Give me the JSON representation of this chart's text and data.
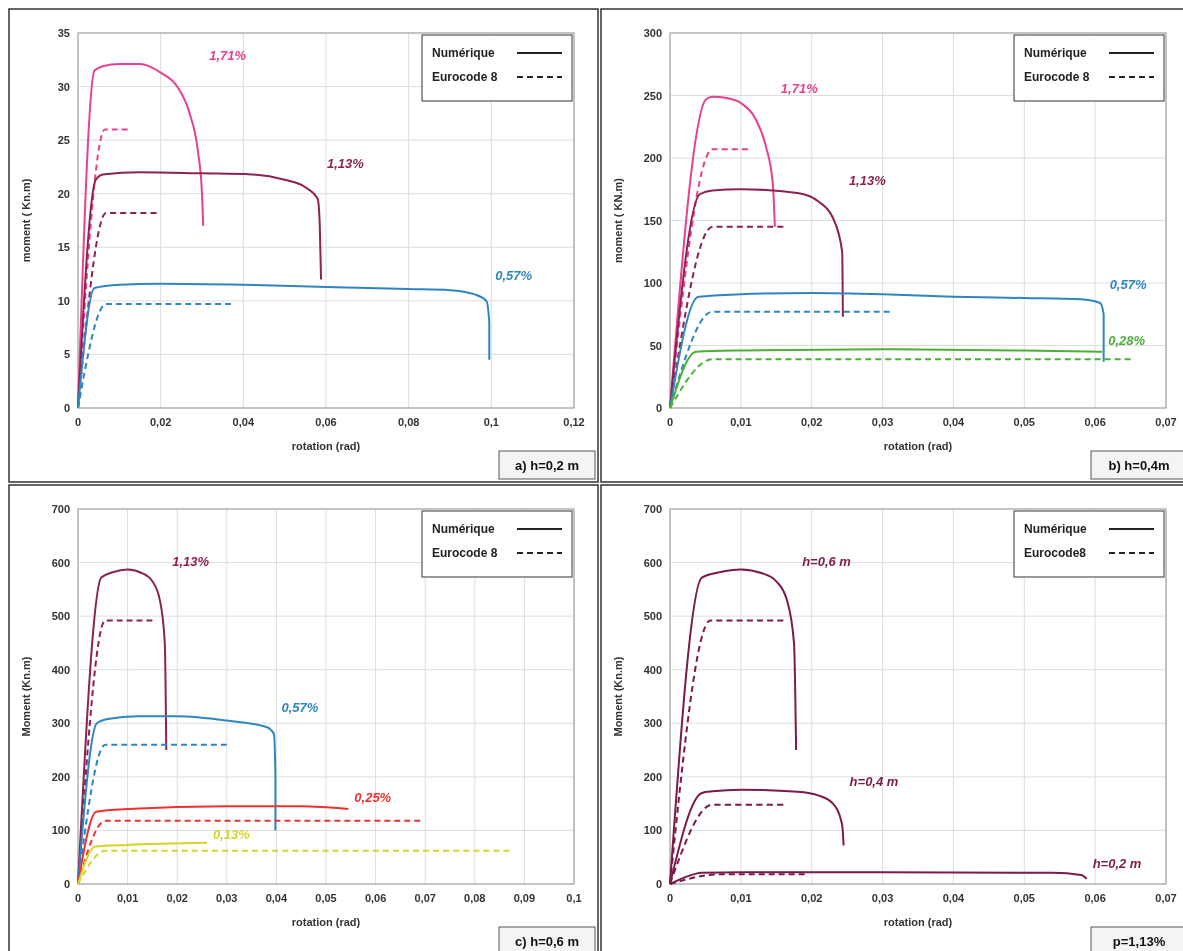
{
  "chart_data": [
    {
      "type": "line",
      "title": "a) h=0,2 m",
      "xlabel": "rotation (rad)",
      "ylabel": "moment ( Kn.m)",
      "grid": true,
      "xlim": [
        0,
        0.12
      ],
      "xticks": [
        {
          "value": 0,
          "label": "0"
        },
        {
          "value": 0.02,
          "label": "0,02"
        },
        {
          "value": 0.04,
          "label": "0,04"
        },
        {
          "value": 0.06,
          "label": "0,06"
        },
        {
          "value": 0.08,
          "label": "0,08"
        },
        {
          "value": 0.1,
          "label": "0,1"
        },
        {
          "value": 0.12,
          "label": "0,12"
        }
      ],
      "ylim": [
        0,
        35
      ],
      "yticks": [
        {
          "value": 0,
          "label": "0"
        },
        5,
        10,
        15,
        20,
        25,
        30,
        35
      ],
      "annotations": [
        "Numérique",
        "Eurocode 8"
      ],
      "series": [
        {
          "name": "1,71%",
          "color": "#e8408f",
          "line_style": "solid",
          "x": [
            0,
            0.004,
            0.006,
            0.01,
            0.015,
            0.02,
            0.024,
            0.027,
            0.029,
            0.03,
            0.0303
          ],
          "values": [
            0,
            31.5,
            31.9,
            32.1,
            32.1,
            31.3,
            30,
            27.5,
            24,
            20,
            17
          ]
        },
        {
          "color": "#e8408f",
          "line_style": "dashed",
          "x": [
            0,
            0.0065,
            0.012
          ],
          "values": [
            0,
            26,
            26
          ]
        },
        {
          "name": "1,13%",
          "color": "#8b2252",
          "line_style": "solid",
          "x": [
            0,
            0.0043,
            0.006,
            0.015,
            0.03,
            0.042,
            0.05,
            0.055,
            0.058,
            0.0585,
            0.0588
          ],
          "values": [
            0,
            21.3,
            21.8,
            22,
            21.9,
            21.8,
            21.3,
            20.6,
            19.5,
            17,
            12
          ]
        },
        {
          "color": "#8b2252",
          "line_style": "dashed",
          "x": [
            0,
            0.0068,
            0.019
          ],
          "values": [
            0,
            18.2,
            18.2
          ]
        },
        {
          "name": "0,57%",
          "color": "#2e86c1",
          "line_style": "solid",
          "x": [
            0,
            0.004,
            0.01,
            0.02,
            0.04,
            0.06,
            0.08,
            0.09,
            0.096,
            0.0988,
            0.0995,
            0.0995
          ],
          "values": [
            0,
            11.2,
            11.5,
            11.6,
            11.5,
            11.3,
            11.1,
            11,
            10.6,
            10,
            8,
            4.5
          ]
        },
        {
          "color": "#2e86c1",
          "line_style": "dashed",
          "x": [
            0,
            0.0068,
            0.037
          ],
          "values": [
            0,
            9.7,
            9.7
          ]
        }
      ]
    },
    {
      "type": "line",
      "title": "b) h=0,4m",
      "xlabel": "rotation (rad)",
      "ylabel": "moment ( KN.m)",
      "grid": true,
      "xlim": [
        0,
        0.07
      ],
      "xticks": [
        0,
        {
          "value": 0.01,
          "label": "0,01"
        },
        {
          "value": 0.02,
          "label": "0,02"
        },
        {
          "value": 0.03,
          "label": "0,03"
        },
        {
          "value": 0.04,
          "label": "0,04"
        },
        {
          "value": 0.05,
          "label": "0,05"
        },
        {
          "value": 0.06,
          "label": "0,06"
        },
        {
          "value": 0.07,
          "label": "0,07"
        }
      ],
      "ylim": [
        0,
        300
      ],
      "yticks": [
        {
          "value": 0,
          "label": "0"
        },
        50,
        100,
        150,
        200,
        250,
        300
      ],
      "annotations": [
        "Numérique",
        "Eurocode 8"
      ],
      "series": [
        {
          "name": "1,71%",
          "color": "#e8408f",
          "line_style": "solid",
          "x": [
            0,
            0.0051,
            0.006,
            0.008,
            0.01,
            0.012,
            0.0135,
            0.0145,
            0.0148
          ],
          "values": [
            0,
            247,
            249,
            248,
            244,
            232,
            210,
            180,
            145
          ]
        },
        {
          "color": "#e8408f",
          "line_style": "dashed",
          "x": [
            0,
            0.006,
            0.011
          ],
          "values": [
            0,
            207,
            207
          ]
        },
        {
          "name": "1,13%",
          "color": "#8b2252",
          "line_style": "solid",
          "x": [
            0,
            0.0042,
            0.006,
            0.01,
            0.018,
            0.021,
            0.023,
            0.0243,
            0.0244
          ],
          "values": [
            0,
            171,
            174,
            175,
            172,
            165,
            152,
            125,
            73
          ]
        },
        {
          "color": "#8b2252",
          "line_style": "dashed",
          "x": [
            0,
            0.006,
            0.016
          ],
          "values": [
            0,
            145,
            145
          ]
        },
        {
          "name": "0,57%",
          "color": "#2e86c1",
          "line_style": "solid",
          "x": [
            0,
            0.004,
            0.01,
            0.02,
            0.03,
            0.04,
            0.05,
            0.058,
            0.0607,
            0.0612,
            0.0612
          ],
          "values": [
            0,
            89,
            91,
            92,
            91,
            89,
            88,
            87,
            84,
            75,
            37
          ]
        },
        {
          "color": "#2e86c1",
          "line_style": "dashed",
          "x": [
            0,
            0.006,
            0.031
          ],
          "values": [
            0,
            77,
            77
          ]
        },
        {
          "name": "0,28%",
          "color": "#4caf3a",
          "line_style": "solid",
          "x": [
            0,
            0.0037,
            0.01,
            0.03,
            0.05,
            0.061
          ],
          "values": [
            0,
            45,
            46,
            47,
            46,
            45
          ]
        },
        {
          "color": "#4caf3a",
          "line_style": "dashed",
          "x": [
            0,
            0.006,
            0.065
          ],
          "values": [
            0,
            39,
            39
          ]
        }
      ]
    },
    {
      "type": "line",
      "title": "c) h=0,6 m",
      "xlabel": "rotation (rad)",
      "ylabel": "Moment (Kn.m)",
      "grid": true,
      "xlim": [
        0,
        0.1
      ],
      "xticks": [
        {
          "value": 0,
          "label": "0"
        },
        {
          "value": 0.01,
          "label": "0,01"
        },
        {
          "value": 0.02,
          "label": "0,02"
        },
        {
          "value": 0.03,
          "label": "0,03"
        },
        {
          "value": 0.04,
          "label": "0,04"
        },
        {
          "value": 0.05,
          "label": "0,05"
        },
        {
          "value": 0.06,
          "label": "0,06"
        },
        {
          "value": 0.07,
          "label": "0,07"
        },
        {
          "value": 0.08,
          "label": "0,08"
        },
        {
          "value": 0.09,
          "label": "0,09"
        },
        {
          "value": 0.1,
          "label": "0,1"
        }
      ],
      "ylim": [
        0,
        700
      ],
      "yticks": [
        0,
        100,
        200,
        300,
        400,
        500,
        600,
        700
      ],
      "annotations": [
        "Numérique",
        "Eurocode 8"
      ],
      "series": [
        {
          "name": "1,13%",
          "color": "#8b2252",
          "line_style": "solid",
          "x": [
            0,
            0.0047,
            0.007,
            0.01,
            0.013,
            0.015,
            0.0165,
            0.0175,
            0.0178
          ],
          "values": [
            0,
            572,
            582,
            587,
            580,
            565,
            530,
            450,
            250
          ]
        },
        {
          "color": "#8b2252",
          "line_style": "dashed",
          "x": [
            0,
            0.0055,
            0.015
          ],
          "values": [
            0,
            492,
            492
          ]
        },
        {
          "name": "0,57%",
          "color": "#2e86c1",
          "line_style": "solid",
          "x": [
            0,
            0.0038,
            0.006,
            0.012,
            0.02,
            0.03,
            0.038,
            0.0395,
            0.0398,
            0.0398
          ],
          "values": [
            0,
            300,
            308,
            313,
            313,
            305,
            293,
            280,
            200,
            100
          ]
        },
        {
          "color": "#2e86c1",
          "line_style": "dashed",
          "x": [
            0,
            0.0055,
            0.03
          ],
          "values": [
            0,
            260,
            260
          ]
        },
        {
          "name": "0,25%",
          "color": "#f03030",
          "line_style": "solid",
          "x": [
            0,
            0.0037,
            0.01,
            0.03,
            0.045,
            0.0545
          ],
          "values": [
            0,
            135,
            140,
            145,
            145,
            140
          ]
        },
        {
          "color": "#f03030",
          "line_style": "dashed",
          "x": [
            0,
            0.0055,
            0.069
          ],
          "values": [
            0,
            118,
            118
          ]
        },
        {
          "name": "0,13%",
          "color": "#d4d42a",
          "line_style": "solid",
          "x": [
            0,
            0.0035,
            0.01,
            0.026
          ],
          "values": [
            0,
            70,
            73,
            77
          ]
        },
        {
          "color": "#d4d42a",
          "line_style": "dashed",
          "x": [
            0,
            0.0055,
            0.087
          ],
          "values": [
            0,
            62,
            62
          ]
        }
      ]
    },
    {
      "type": "line",
      "title": "p=1,13%",
      "xlabel": "rotation (rad)",
      "ylabel": "Moment (Kn.m)",
      "grid": true,
      "xlim": [
        0,
        0.07
      ],
      "xticks": [
        0,
        {
          "value": 0.01,
          "label": "0,01"
        },
        {
          "value": 0.02,
          "label": "0,02"
        },
        {
          "value": 0.03,
          "label": "0,03"
        },
        {
          "value": 0.04,
          "label": "0,04"
        },
        {
          "value": 0.05,
          "label": "0,05"
        },
        {
          "value": 0.06,
          "label": "0,06"
        },
        {
          "value": 0.07,
          "label": "0,07"
        }
      ],
      "ylim": [
        0,
        700
      ],
      "yticks": [
        0,
        100,
        200,
        300,
        400,
        500,
        600,
        700
      ],
      "annotations": [
        "Numérique",
        "Eurocode8"
      ],
      "series": [
        {
          "name": "h=0,6 m",
          "color": "#7b1a4b",
          "line_style": "solid",
          "x": [
            0,
            0.0045,
            0.007,
            0.01,
            0.013,
            0.015,
            0.0165,
            0.0175,
            0.0178
          ],
          "values": [
            0,
            572,
            582,
            587,
            580,
            565,
            530,
            450,
            250
          ]
        },
        {
          "color": "#7b1a4b",
          "line_style": "dashed",
          "x": [
            0,
            0.0057,
            0.016
          ],
          "values": [
            0,
            492,
            492
          ]
        },
        {
          "name": "h=0,4 m",
          "color": "#7b1a4b",
          "line_style": "solid",
          "x": [
            0,
            0.0045,
            0.006,
            0.01,
            0.018,
            0.021,
            0.023,
            0.0243,
            0.0245
          ],
          "values": [
            0,
            170,
            173,
            176,
            172,
            165,
            150,
            110,
            72
          ]
        },
        {
          "color": "#7b1a4b",
          "line_style": "dashed",
          "x": [
            0,
            0.006,
            0.016
          ],
          "values": [
            0,
            148,
            148
          ]
        },
        {
          "name": "h=0,2 m",
          "color": "#7b1a4b",
          "line_style": "solid",
          "x": [
            0,
            0.002,
            0.0045,
            0.01,
            0.03,
            0.054,
            0.058,
            0.0588
          ],
          "values": [
            0,
            12,
            21,
            22,
            22,
            21,
            17,
            10
          ]
        },
        {
          "color": "#7b1a4b",
          "line_style": "dashed",
          "x": [
            0,
            0.007,
            0.019
          ],
          "values": [
            0,
            18,
            18
          ]
        }
      ]
    }
  ]
}
